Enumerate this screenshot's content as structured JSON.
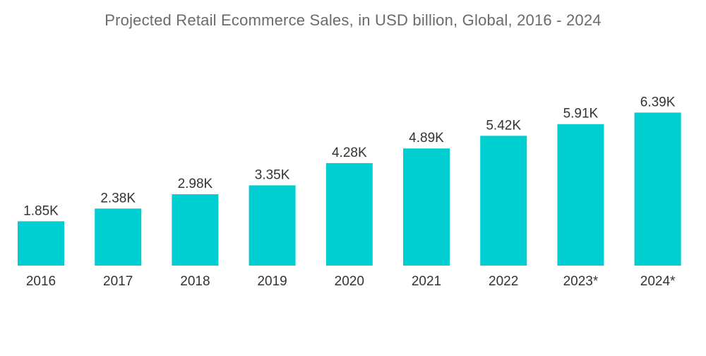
{
  "chart_data": {
    "type": "bar",
    "title": "Projected Retail Ecommerce Sales, in USD billion, Global, 2016 - 2024",
    "xlabel": "",
    "ylabel": "",
    "categories": [
      "2016",
      "2017",
      "2018",
      "2019",
      "2020",
      "2021",
      "2022",
      "2023*",
      "2024*"
    ],
    "values": [
      1850,
      2380,
      2980,
      3350,
      4280,
      4890,
      5420,
      5910,
      6390
    ],
    "value_labels": [
      "1.85K",
      "2.38K",
      "2.98K",
      "3.35K",
      "4.28K",
      "4.89K",
      "5.42K",
      "5.91K",
      "6.39K"
    ],
    "ylim": [
      0,
      6500
    ],
    "grid": false,
    "bar_color": "#00CED1"
  }
}
